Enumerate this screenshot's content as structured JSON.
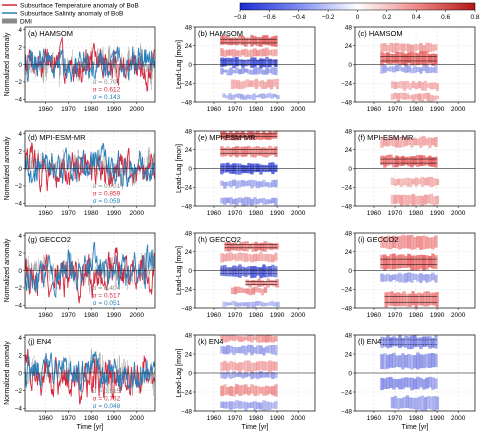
{
  "legend": {
    "entries": [
      {
        "label": "Subsurface Temperature anomaly of BoB",
        "color": "#d6263b"
      },
      {
        "label": "Subsurface Salinity anomaly of BoB",
        "color": "#2b7fb8"
      },
      {
        "label": "DMI",
        "color": "#8a8a8a"
      }
    ]
  },
  "colorbar": {
    "ticks": [
      "−0.8",
      "−0.6",
      "−0.4",
      "−0.2",
      "0",
      "0.2",
      "0.4",
      "0.6",
      "0.8"
    ]
  },
  "colors": {
    "temperature": "#d6263b",
    "salinity": "#2b7fb8",
    "dmi": "#8a8a8a",
    "positive": "#e23c3c",
    "negative": "#2233cc"
  },
  "axes": {
    "left_ylabel": "Normalized anomaly",
    "mid_ylabel": "Lead-Lag [mon]",
    "xlabel": "Time [yr]"
  },
  "chart_data": [
    {
      "type": "line",
      "dataset": "HAMSOM",
      "title": "(a) HAMSOM",
      "x_range": [
        1951,
        2008
      ],
      "xticks": [
        1960,
        1970,
        1980,
        1990,
        2000
      ],
      "yticks": [
        -4,
        -2,
        0,
        2,
        4
      ],
      "ylim": [
        -4.3,
        4.3
      ],
      "sigma": [
        {
          "label": "σ = 0.701",
          "value": 0.701,
          "series": "DMI"
        },
        {
          "label": "σ = 0.612",
          "value": 0.612,
          "series": "Temperature"
        },
        {
          "label": "σ = 0.143",
          "value": 0.143,
          "series": "Salinity"
        }
      ],
      "series": [
        {
          "name": "Subsurface Temperature anomaly of BoB",
          "amplitude": 1.5
        },
        {
          "name": "Subsurface Salinity anomaly of BoB",
          "amplitude": 1.4
        },
        {
          "name": "DMI",
          "amplitude": 1.3
        }
      ]
    },
    {
      "type": "heatmap",
      "title": "(b) HAMSOM",
      "x_range": [
        1951,
        2008
      ],
      "xticks": [
        1960,
        1970,
        1980,
        1990,
        2000
      ],
      "yticks": [
        -48,
        -24,
        0,
        24,
        48
      ],
      "ylim": [
        -48,
        48
      ],
      "bands": [
        {
          "y": [
            24,
            36
          ],
          "x": [
            1963,
            1990
          ],
          "sign": "positive",
          "strength": 0.7
        },
        {
          "y": [
            10,
            20
          ],
          "x": [
            1963,
            1990
          ],
          "sign": "positive",
          "strength": 0.4
        },
        {
          "y": [
            -3,
            8
          ],
          "x": [
            1963,
            1990
          ],
          "sign": "negative",
          "strength": 0.85
        },
        {
          "y": [
            -12,
            -5
          ],
          "x": [
            1963,
            1990
          ],
          "sign": "negative",
          "strength": 0.35
        },
        {
          "y": [
            -30,
            -20
          ],
          "x": [
            1968,
            1990
          ],
          "sign": "positive",
          "strength": 0.25
        },
        {
          "y": [
            -44,
            -38
          ],
          "x": [
            1964,
            1990
          ],
          "sign": "negative",
          "strength": 0.25
        }
      ]
    },
    {
      "type": "heatmap",
      "title": "(c) HAMSOM",
      "x_range": [
        1951,
        2008
      ],
      "xticks": [
        1960,
        1970,
        1980,
        1990,
        2000
      ],
      "yticks": [
        -48,
        -24,
        0,
        24,
        48
      ],
      "ylim": [
        -48,
        48
      ],
      "bands": [
        {
          "y": [
            16,
            26
          ],
          "x": [
            1963,
            1990
          ],
          "sign": "positive",
          "strength": 0.3
        },
        {
          "y": [
            0,
            15
          ],
          "x": [
            1963,
            1990
          ],
          "sign": "positive",
          "strength": 0.75
        },
        {
          "y": [
            -10,
            -2
          ],
          "x": [
            1963,
            1990
          ],
          "sign": "negative",
          "strength": 0.25
        },
        {
          "y": [
            -32,
            -22
          ],
          "x": [
            1968,
            1990
          ],
          "sign": "positive",
          "strength": 0.25
        },
        {
          "y": [
            -46,
            -38
          ],
          "x": [
            1968,
            1990
          ],
          "sign": "positive",
          "strength": 0.3
        }
      ]
    },
    {
      "type": "line",
      "dataset": "MPI-ESM-MR",
      "title": "(d) MPI-ESM-MR",
      "x_range": [
        1951,
        2008
      ],
      "xticks": [
        1960,
        1970,
        1980,
        1990,
        2000
      ],
      "yticks": [
        -4,
        -2,
        0,
        2,
        4
      ],
      "ylim": [
        -4.3,
        4.3
      ],
      "sigma": [
        {
          "label": "σ = 0.701",
          "value": 0.701,
          "series": "DMI"
        },
        {
          "label": "σ = 0.859",
          "value": 0.859,
          "series": "Temperature"
        },
        {
          "label": "σ = 0.059",
          "value": 0.059,
          "series": "Salinity"
        }
      ],
      "series": [
        {
          "name": "Subsurface Temperature anomaly of BoB",
          "amplitude": 1.5
        },
        {
          "name": "Subsurface Salinity anomaly of BoB",
          "amplitude": 1.4
        },
        {
          "name": "DMI",
          "amplitude": 1.3
        }
      ]
    },
    {
      "type": "heatmap",
      "title": "(e) MPI-ESM-MR",
      "x_range": [
        1951,
        2008
      ],
      "xticks": [
        1960,
        1970,
        1980,
        1990,
        2000
      ],
      "yticks": [
        -48,
        -24,
        0,
        24,
        48
      ],
      "ylim": [
        -48,
        48
      ],
      "bands": [
        {
          "y": [
            38,
            47
          ],
          "x": [
            1963,
            1990
          ],
          "sign": "positive",
          "strength": 0.75
        },
        {
          "y": [
            16,
            28
          ],
          "x": [
            1963,
            1990
          ],
          "sign": "positive",
          "strength": 0.55
        },
        {
          "y": [
            -6,
            6
          ],
          "x": [
            1963,
            1990
          ],
          "sign": "negative",
          "strength": 0.85
        },
        {
          "y": [
            -24,
            -16
          ],
          "x": [
            1963,
            1990
          ],
          "sign": "negative",
          "strength": 0.25
        },
        {
          "y": [
            -46,
            -38
          ],
          "x": [
            1963,
            1990
          ],
          "sign": "negative",
          "strength": 0.3
        }
      ]
    },
    {
      "type": "heatmap",
      "title": "(f) MPI-ESM-MR",
      "x_range": [
        1951,
        2008
      ],
      "xticks": [
        1960,
        1970,
        1980,
        1990,
        2000
      ],
      "yticks": [
        -48,
        -24,
        0,
        24,
        48
      ],
      "ylim": [
        -48,
        48
      ],
      "bands": [
        {
          "y": [
            28,
            40
          ],
          "x": [
            1963,
            1990
          ],
          "sign": "positive",
          "strength": 0.3
        },
        {
          "y": [
            3,
            16
          ],
          "x": [
            1963,
            1990
          ],
          "sign": "positive",
          "strength": 0.75
        },
        {
          "y": [
            -22,
            -12
          ],
          "x": [
            1968,
            1990
          ],
          "sign": "positive",
          "strength": 0.25
        },
        {
          "y": [
            -46,
            -34
          ],
          "x": [
            1968,
            1990
          ],
          "sign": "positive",
          "strength": 0.3
        }
      ]
    },
    {
      "type": "line",
      "dataset": "GECCO2",
      "title": "(g) GECCO2",
      "x_range": [
        1951,
        2008
      ],
      "xticks": [
        1960,
        1970,
        1980,
        1990,
        2000
      ],
      "yticks": [
        -4,
        -2,
        0,
        2,
        4
      ],
      "ylim": [
        -4.3,
        4.3
      ],
      "sigma": [
        {
          "label": "σ = 0.404",
          "value": 0.404,
          "series": "DMI"
        },
        {
          "label": "σ = 0.517",
          "value": 0.517,
          "series": "Temperature"
        },
        {
          "label": "σ = 0.051",
          "value": 0.051,
          "series": "Salinity"
        }
      ],
      "series": [
        {
          "name": "Subsurface Temperature anomaly of BoB",
          "amplitude": 1.6
        },
        {
          "name": "Subsurface Salinity anomaly of BoB",
          "amplitude": 1.5
        },
        {
          "name": "DMI",
          "amplitude": 1.4
        }
      ]
    },
    {
      "type": "heatmap",
      "title": "(h) GECCO2",
      "x_range": [
        1951,
        2008
      ],
      "xticks": [
        1960,
        1970,
        1980,
        1990,
        2000
      ],
      "yticks": [
        -48,
        -24,
        0,
        24,
        48
      ],
      "ylim": [
        -48,
        48
      ],
      "bands": [
        {
          "y": [
            26,
            36
          ],
          "x": [
            1965,
            1990
          ],
          "sign": "positive",
          "strength": 0.55
        },
        {
          "y": [
            12,
            22
          ],
          "x": [
            1963,
            1990
          ],
          "sign": "positive",
          "strength": 0.3
        },
        {
          "y": [
            -8,
            6
          ],
          "x": [
            1963,
            1990
          ],
          "sign": "negative",
          "strength": 0.75
        },
        {
          "y": [
            -20,
            -12
          ],
          "x": [
            1975,
            1990
          ],
          "sign": "positive",
          "strength": 0.55
        },
        {
          "y": [
            -30,
            -22
          ],
          "x": [
            1968,
            1985
          ],
          "sign": "positive",
          "strength": 0.45
        },
        {
          "y": [
            -46,
            -40
          ],
          "x": [
            1964,
            1990
          ],
          "sign": "negative",
          "strength": 0.2
        }
      ]
    },
    {
      "type": "heatmap",
      "title": "(i) GECCO2",
      "x_range": [
        1951,
        2008
      ],
      "xticks": [
        1960,
        1970,
        1980,
        1990,
        2000
      ],
      "yticks": [
        -48,
        -24,
        0,
        24,
        48
      ],
      "ylim": [
        -48,
        48
      ],
      "bands": [
        {
          "y": [
            28,
            44
          ],
          "x": [
            1963,
            1990
          ],
          "sign": "positive",
          "strength": 0.45
        },
        {
          "y": [
            2,
            20
          ],
          "x": [
            1963,
            1990
          ],
          "sign": "positive",
          "strength": 0.7
        },
        {
          "y": [
            -14,
            -4
          ],
          "x": [
            1963,
            1990
          ],
          "sign": "negative",
          "strength": 0.25
        },
        {
          "y": [
            -46,
            -28
          ],
          "x": [
            1965,
            1990
          ],
          "sign": "positive",
          "strength": 0.5
        }
      ]
    },
    {
      "type": "line",
      "dataset": "EN4",
      "title": "(j) EN4",
      "x_range": [
        1951,
        2008
      ],
      "xticks": [
        1960,
        1970,
        1980,
        1990,
        2000
      ],
      "yticks": [
        -4,
        -2,
        0,
        2,
        4
      ],
      "ylim": [
        -4.3,
        4.3
      ],
      "sigma": [
        {
          "label": "σ = 0.515",
          "value": 0.515,
          "series": "DMI"
        },
        {
          "label": "σ = 0.762",
          "value": 0.762,
          "series": "Temperature"
        },
        {
          "label": "σ = 0.048",
          "value": 0.048,
          "series": "Salinity"
        }
      ],
      "series": [
        {
          "name": "Subsurface Temperature anomaly of BoB",
          "amplitude": 1.6
        },
        {
          "name": "Subsurface Salinity anomaly of BoB",
          "amplitude": 1.5
        },
        {
          "name": "DMI",
          "amplitude": 1.5
        }
      ]
    },
    {
      "type": "heatmap",
      "title": "(k) EN4",
      "x_range": [
        1951,
        2008
      ],
      "xticks": [
        1960,
        1970,
        1980,
        1990,
        2000
      ],
      "yticks": [
        -48,
        -24,
        0,
        24,
        48
      ],
      "ylim": [
        -48,
        48
      ],
      "bands": [
        {
          "y": [
            40,
            48
          ],
          "x": [
            1963,
            1990
          ],
          "sign": "positive",
          "strength": 0.4
        },
        {
          "y": [
            24,
            34
          ],
          "x": [
            1963,
            1990
          ],
          "sign": "negative",
          "strength": 0.3
        },
        {
          "y": [
            2,
            14
          ],
          "x": [
            1963,
            1990
          ],
          "sign": "positive",
          "strength": 0.3
        },
        {
          "y": [
            -6,
            1
          ],
          "x": [
            1963,
            1990
          ],
          "sign": "negative",
          "strength": 0.3
        },
        {
          "y": [
            -28,
            -16
          ],
          "x": [
            1963,
            1990
          ],
          "sign": "positive",
          "strength": 0.4
        },
        {
          "y": [
            -46,
            -36
          ],
          "x": [
            1963,
            1990
          ],
          "sign": "negative",
          "strength": 0.25
        }
      ]
    },
    {
      "type": "heatmap",
      "title": "(l) EN4",
      "x_range": [
        1951,
        2008
      ],
      "xticks": [
        1960,
        1970,
        1980,
        1990,
        2000
      ],
      "yticks": [
        -48,
        -24,
        0,
        24,
        48
      ],
      "ylim": [
        -48,
        48
      ],
      "bands": [
        {
          "y": [
            32,
            46
          ],
          "x": [
            1963,
            1990
          ],
          "sign": "negative",
          "strength": 0.5
        },
        {
          "y": [
            6,
            24
          ],
          "x": [
            1963,
            1990
          ],
          "sign": "negative",
          "strength": 0.35
        },
        {
          "y": [
            -20,
            -6
          ],
          "x": [
            1963,
            1990
          ],
          "sign": "negative",
          "strength": 0.4
        },
        {
          "y": [
            -46,
            -30
          ],
          "x": [
            1968,
            1990
          ],
          "sign": "negative",
          "strength": 0.3
        }
      ]
    }
  ]
}
